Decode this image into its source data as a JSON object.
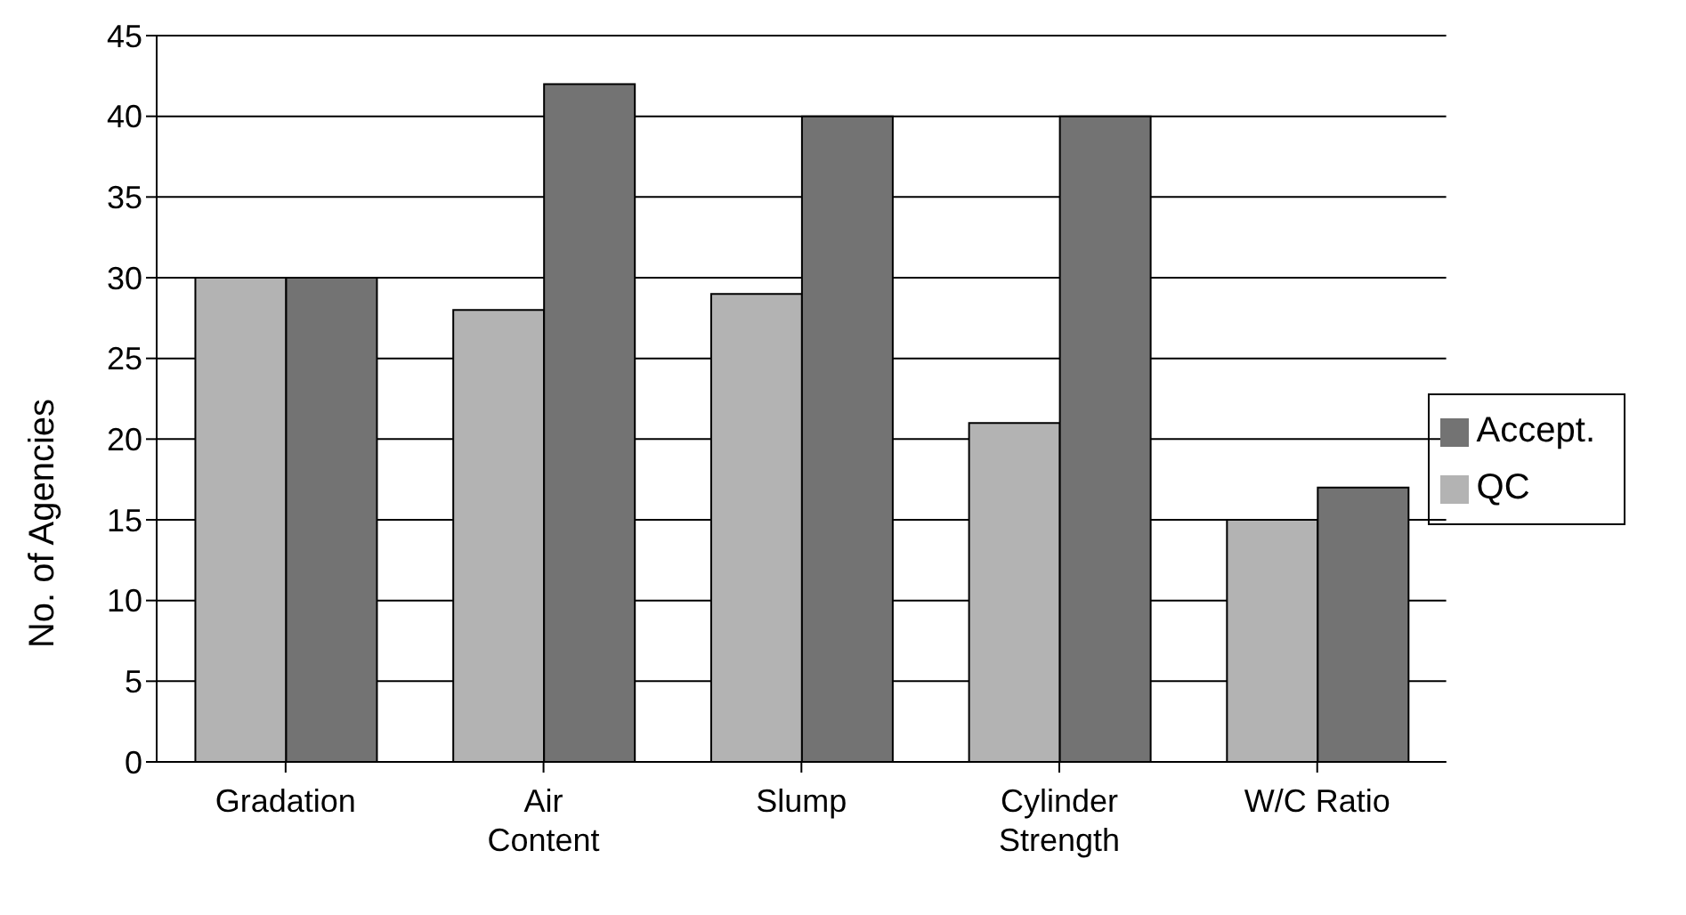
{
  "chart_data": {
    "type": "bar",
    "ylabel": "No. of Agencies",
    "categories": [
      "Gradation",
      "Air Content",
      "Slump",
      "Cylinder Strength",
      "W/C Ratio"
    ],
    "series": [
      {
        "name": "QC",
        "color": "#b3b3b3",
        "values": [
          30,
          28,
          29,
          21,
          15
        ]
      },
      {
        "name": "Accept.",
        "color": "#737373",
        "values": [
          30,
          42,
          40,
          40,
          17
        ]
      }
    ],
    "ylim": [
      0,
      45
    ],
    "yticks": [
      0,
      5,
      10,
      15,
      20,
      25,
      30,
      35,
      40,
      45
    ],
    "grid": "y",
    "legend": "right"
  }
}
